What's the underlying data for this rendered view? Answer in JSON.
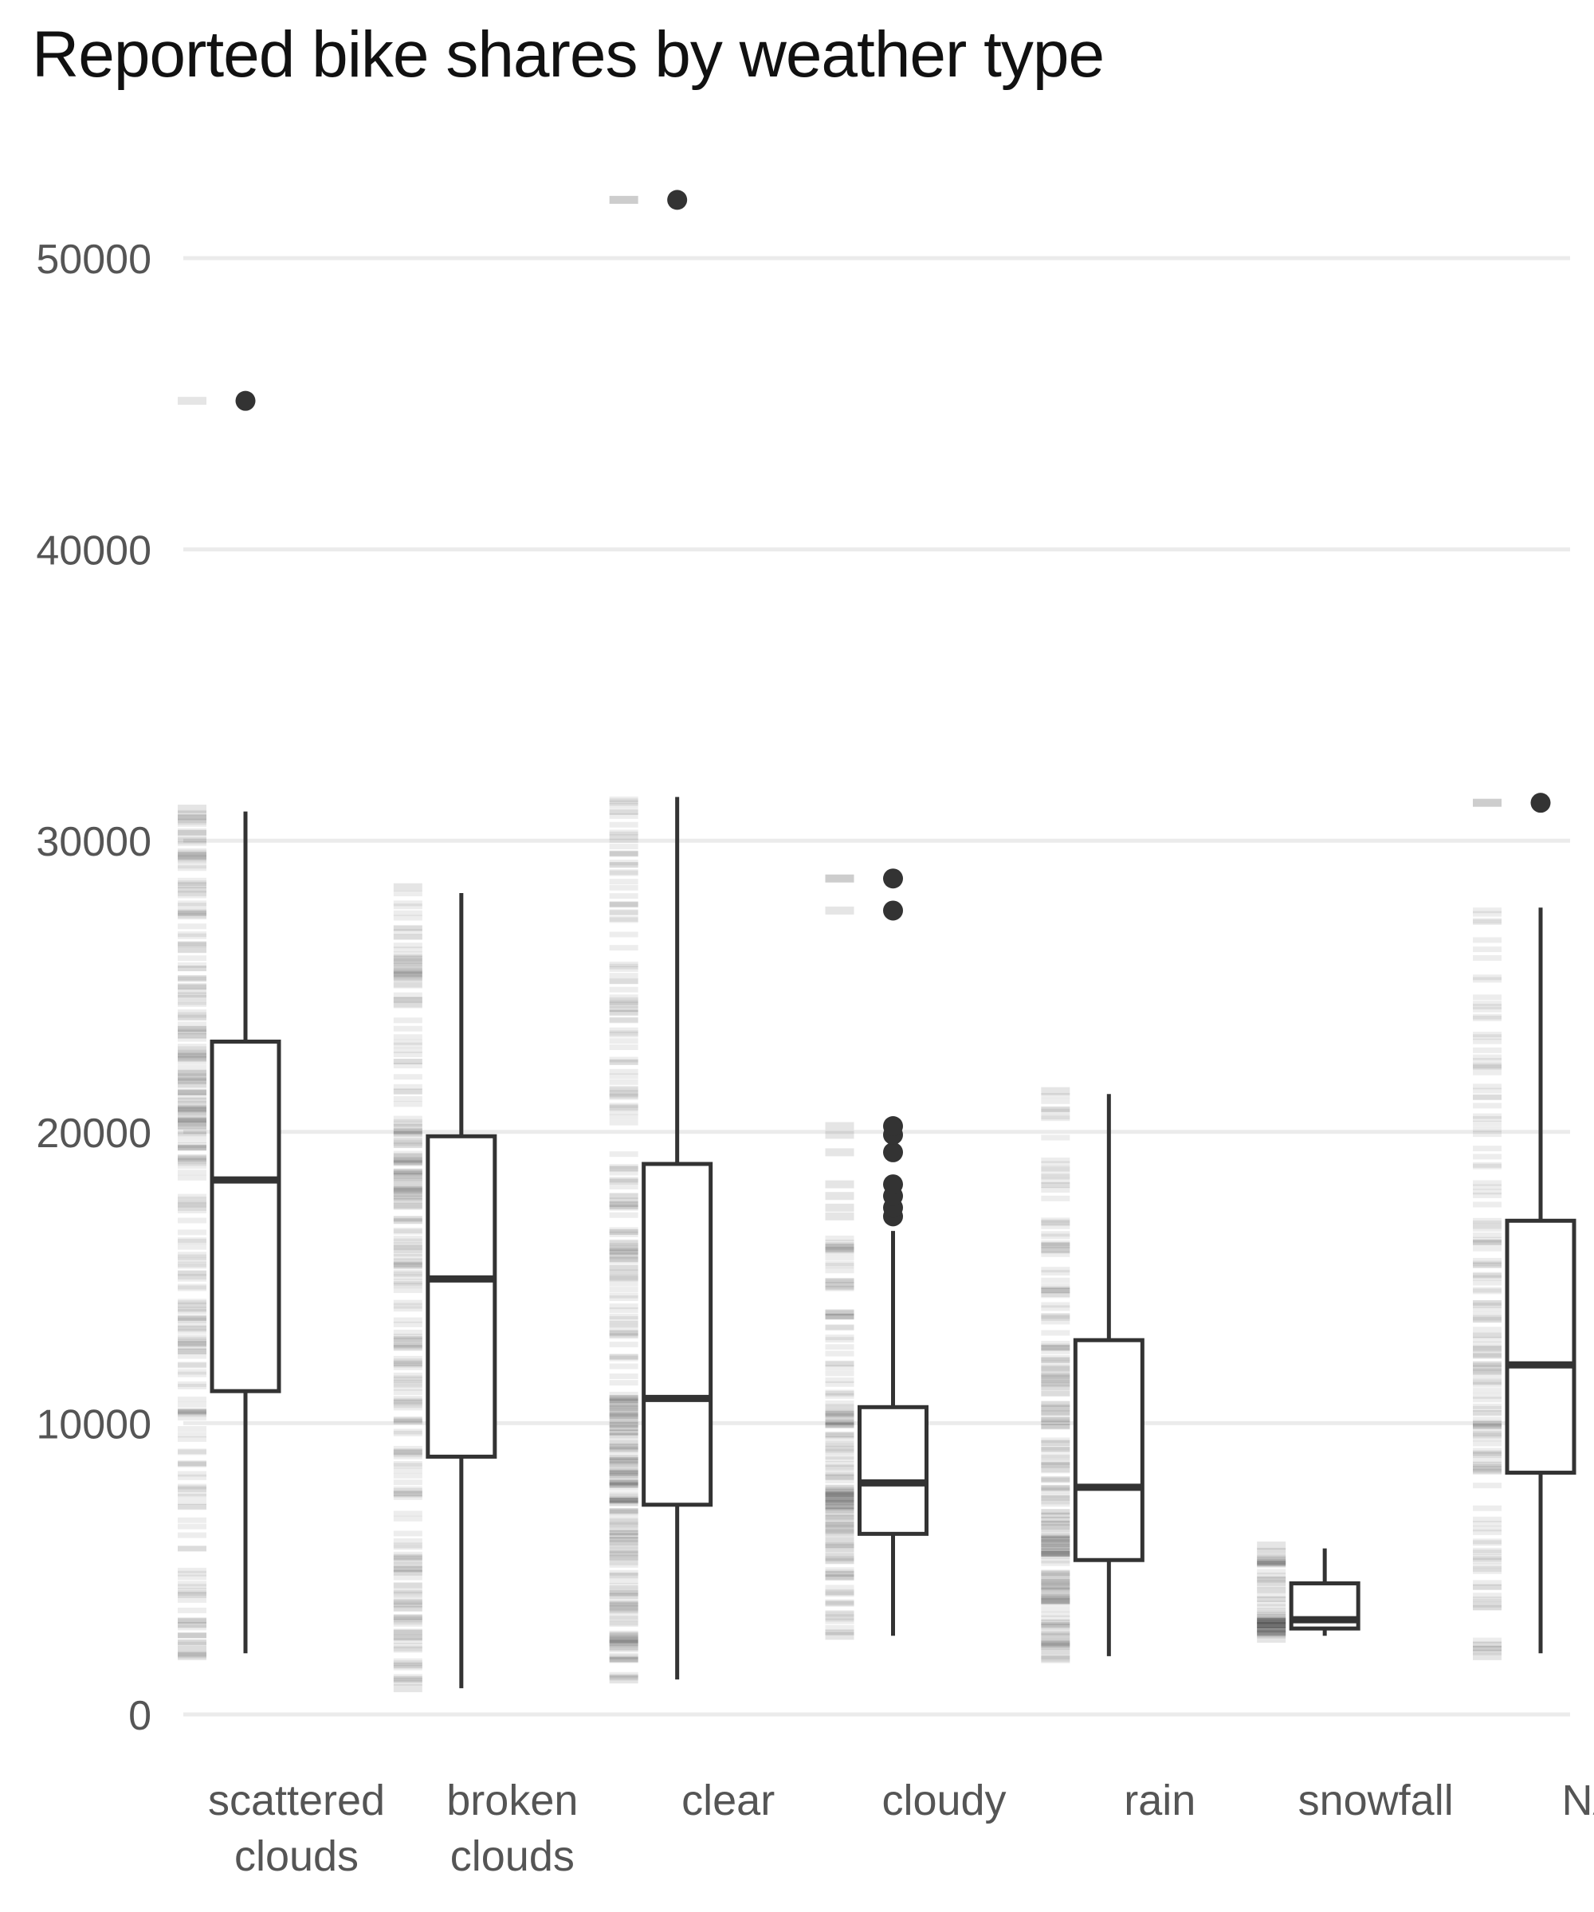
{
  "chart_data": {
    "type": "box",
    "title": "Reported bike shares by weather type",
    "xlabel": "",
    "ylabel": "",
    "ylim": [
      -1000,
      54500
    ],
    "yticks": [
      0,
      10000,
      20000,
      30000,
      40000,
      50000
    ],
    "ytick_labels": [
      "0",
      "10000",
      "20000",
      "30000",
      "40000",
      "50000"
    ],
    "grid": true,
    "legend": "none",
    "categories": [
      {
        "label": [
          "scattered",
          "clouds"
        ],
        "q1": 11100,
        "median": 18350,
        "q3": 23100,
        "whisker_low": 2100,
        "whisker_high": 31000,
        "outliers": [
          45100
        ],
        "rug_min": 2000,
        "rug_max": 31100,
        "rug_density": 0.85
      },
      {
        "label": [
          "broken",
          "clouds"
        ],
        "q1": 8850,
        "median": 14950,
        "q3": 19850,
        "whisker_low": 900,
        "whisker_high": 28200,
        "outliers": [],
        "rug_min": 900,
        "rug_max": 28400,
        "rug_density": 0.8
      },
      {
        "label": [
          "clear"
        ],
        "q1": 7200,
        "median": 10850,
        "q3": 18900,
        "whisker_low": 1200,
        "whisker_high": 31500,
        "outliers": [
          52000
        ],
        "rug_min": 1200,
        "rug_max": 52000,
        "rug_density": 1.0
      },
      {
        "label": [
          "cloudy"
        ],
        "q1": 6200,
        "median": 7950,
        "q3": 10550,
        "whisker_low": 2700,
        "whisker_high": 16600,
        "outliers": [
          17100,
          17400,
          17800,
          18200,
          19300,
          19900,
          20200,
          27600,
          28700
        ],
        "rug_min": 2700,
        "rug_max": 28700,
        "rug_density": 0.45
      },
      {
        "label": [
          "rain"
        ],
        "q1": 5300,
        "median": 7800,
        "q3": 12850,
        "whisker_low": 2000,
        "whisker_high": 21300,
        "outliers": [],
        "rug_min": 1900,
        "rug_max": 21400,
        "rug_density": 0.65
      },
      {
        "label": [
          "snowfall"
        ],
        "q1": 2950,
        "median": 3250,
        "q3": 4500,
        "whisker_low": 2700,
        "whisker_high": 5700,
        "outliers": [],
        "rug_min": 2600,
        "rug_max": 5800,
        "rug_density": 0.1
      },
      {
        "label": [
          "NA"
        ],
        "q1": 8300,
        "median": 12000,
        "q3": 16950,
        "whisker_low": 2100,
        "whisker_high": 27700,
        "outliers": [
          31300
        ],
        "rug_min": 2000,
        "rug_max": 31300,
        "rug_density": 0.45
      }
    ],
    "colors": {
      "box_stroke": "#333333",
      "grid": "#ebebeb",
      "rug": "#000000"
    }
  }
}
